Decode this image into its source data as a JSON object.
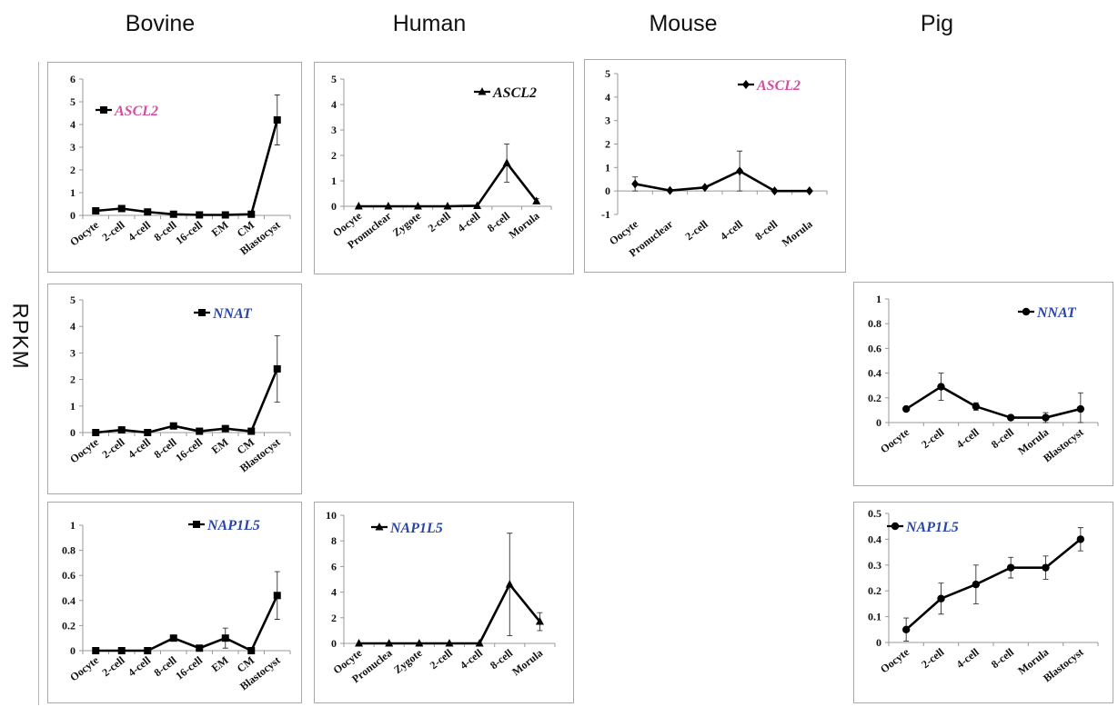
{
  "headers": {
    "bovine": "Bovine",
    "human": "Human",
    "mouse": "Mouse",
    "pig": "Pig"
  },
  "row_label": "RPKM",
  "chart_data": [
    {
      "id": "bovine-ascl2",
      "type": "line",
      "categories": [
        "Oocyte",
        "2-cell",
        "4-cell",
        "8-cell",
        "16-cell",
        "EM",
        "CM",
        "Blastocyst"
      ],
      "series": [
        {
          "name": "ASCL2",
          "values": [
            0.2,
            0.3,
            0.15,
            0.05,
            0.02,
            0.02,
            0.05,
            4.2
          ],
          "errors": [
            0.05,
            0.08,
            0.05,
            0.02,
            0.01,
            0.01,
            0.02,
            1.1
          ],
          "marker": "square"
        }
      ],
      "ylim": [
        0,
        6
      ],
      "yticks": [
        "0",
        "1",
        "2",
        "3",
        "4",
        "5",
        "6"
      ],
      "legend_color": "#d14f9c",
      "legend_position": "top-left"
    },
    {
      "id": "human-ascl2",
      "type": "line",
      "categories": [
        "Oocyte",
        "Pronuclear",
        "Zygote",
        "2-cell",
        "4-cell",
        "8-cell",
        "Morula"
      ],
      "series": [
        {
          "name": "ASCL2",
          "values": [
            0,
            0,
            0,
            0,
            0.02,
            1.7,
            0.2
          ],
          "errors": [
            0,
            0,
            0,
            0,
            0,
            0.75,
            0.1
          ],
          "marker": "triangle"
        }
      ],
      "ylim": [
        0,
        5
      ],
      "yticks": [
        "0",
        "1",
        "2",
        "3",
        "4",
        "5"
      ],
      "legend_color": "#111111",
      "legend_position": "top-right"
    },
    {
      "id": "mouse-ascl2",
      "type": "line",
      "categories": [
        "Oocyte",
        "Pronuclear",
        "2-cell",
        "4-cell",
        "8-cell",
        "Morula"
      ],
      "series": [
        {
          "name": "ASCL2",
          "values": [
            0.3,
            0.02,
            0.15,
            0.85,
            0,
            0
          ],
          "errors": [
            0.3,
            0,
            0.05,
            0.85,
            0,
            0
          ],
          "marker": "diamond"
        }
      ],
      "ylim": [
        -1,
        5
      ],
      "yticks": [
        "-1",
        "0",
        "1",
        "2",
        "3",
        "4",
        "5"
      ],
      "legend_color": "#d14f9c",
      "legend_position": "top-right"
    },
    {
      "id": "bovine-nnat",
      "type": "line",
      "categories": [
        "Oocyte",
        "2-cell",
        "4-cell",
        "8-cell",
        "16-cell",
        "EM",
        "CM",
        "Blastocyst"
      ],
      "series": [
        {
          "name": "NNAT",
          "values": [
            0,
            0.1,
            0,
            0.25,
            0.05,
            0.15,
            0.05,
            2.4
          ],
          "errors": [
            0,
            0.05,
            0,
            0.05,
            0.02,
            0.05,
            0.02,
            1.25
          ],
          "marker": "square"
        }
      ],
      "ylim": [
        0,
        5
      ],
      "yticks": [
        "0",
        "1",
        "2",
        "3",
        "4",
        "5"
      ],
      "legend_color": "#2a45a8",
      "legend_position": "top-right"
    },
    {
      "id": "pig-nnat",
      "type": "line",
      "categories": [
        "Oocyte",
        "2-cell",
        "4-cell",
        "8-cell",
        "Morula",
        "Blastocyst"
      ],
      "series": [
        {
          "name": "NNAT",
          "values": [
            0.11,
            0.29,
            0.13,
            0.04,
            0.04,
            0.11
          ],
          "errors": [
            0,
            0.11,
            0.03,
            0,
            0.04,
            0.13
          ],
          "marker": "circle"
        }
      ],
      "ylim": [
        0,
        1
      ],
      "yticks": [
        "0",
        "0.2",
        "0.4",
        "0.6",
        "0.8",
        "1"
      ],
      "legend_color": "#2a45a8",
      "legend_position": "top-right"
    },
    {
      "id": "bovine-nap1l5",
      "type": "line",
      "categories": [
        "Oocyte",
        "2-cell",
        "4-cell",
        "8-cell",
        "16-cell",
        "EM",
        "CM",
        "Blastocyst"
      ],
      "series": [
        {
          "name": "NAP1L5",
          "values": [
            0,
            0,
            0,
            0.1,
            0.02,
            0.1,
            0,
            0.44
          ],
          "errors": [
            0,
            0,
            0,
            0.02,
            0.02,
            0.08,
            0,
            0.19
          ],
          "marker": "square"
        }
      ],
      "ylim": [
        0,
        1
      ],
      "yticks": [
        "0",
        "0.2",
        "0.4",
        "0.6",
        "0.8",
        "1"
      ],
      "legend_color": "#2a45a8",
      "legend_position": "top-right"
    },
    {
      "id": "human-nap1l5",
      "type": "line",
      "categories": [
        "Oocyte",
        "Pronuclea",
        "Zygote",
        "2-cell",
        "4-cell",
        "8-cell",
        "Morula"
      ],
      "series": [
        {
          "name": "NAP1L5",
          "values": [
            0,
            0,
            0,
            0,
            0,
            4.6,
            1.7
          ],
          "errors": [
            0,
            0,
            0,
            0,
            0,
            4.0,
            0.7
          ],
          "marker": "triangle"
        }
      ],
      "ylim": [
        0,
        10
      ],
      "yticks": [
        "0",
        "2",
        "4",
        "6",
        "8",
        "10"
      ],
      "legend_color": "#2a45a8",
      "legend_position": "top-left"
    },
    {
      "id": "pig-nap1l5",
      "type": "line",
      "categories": [
        "Oocyte",
        "2-cell",
        "4-cell",
        "8-cell",
        "Morula",
        "Blastocyst"
      ],
      "series": [
        {
          "name": "NAP1L5",
          "values": [
            0.05,
            0.17,
            0.225,
            0.29,
            0.29,
            0.4
          ],
          "errors": [
            0.045,
            0.06,
            0.075,
            0.04,
            0.045,
            0.045
          ],
          "marker": "circle"
        }
      ],
      "ylim": [
        0,
        0.5
      ],
      "yticks": [
        "0",
        "0.1",
        "0.2",
        "0.3",
        "0.4",
        "0.5"
      ],
      "legend_color": "#2a45a8",
      "legend_position": "top-left"
    }
  ]
}
